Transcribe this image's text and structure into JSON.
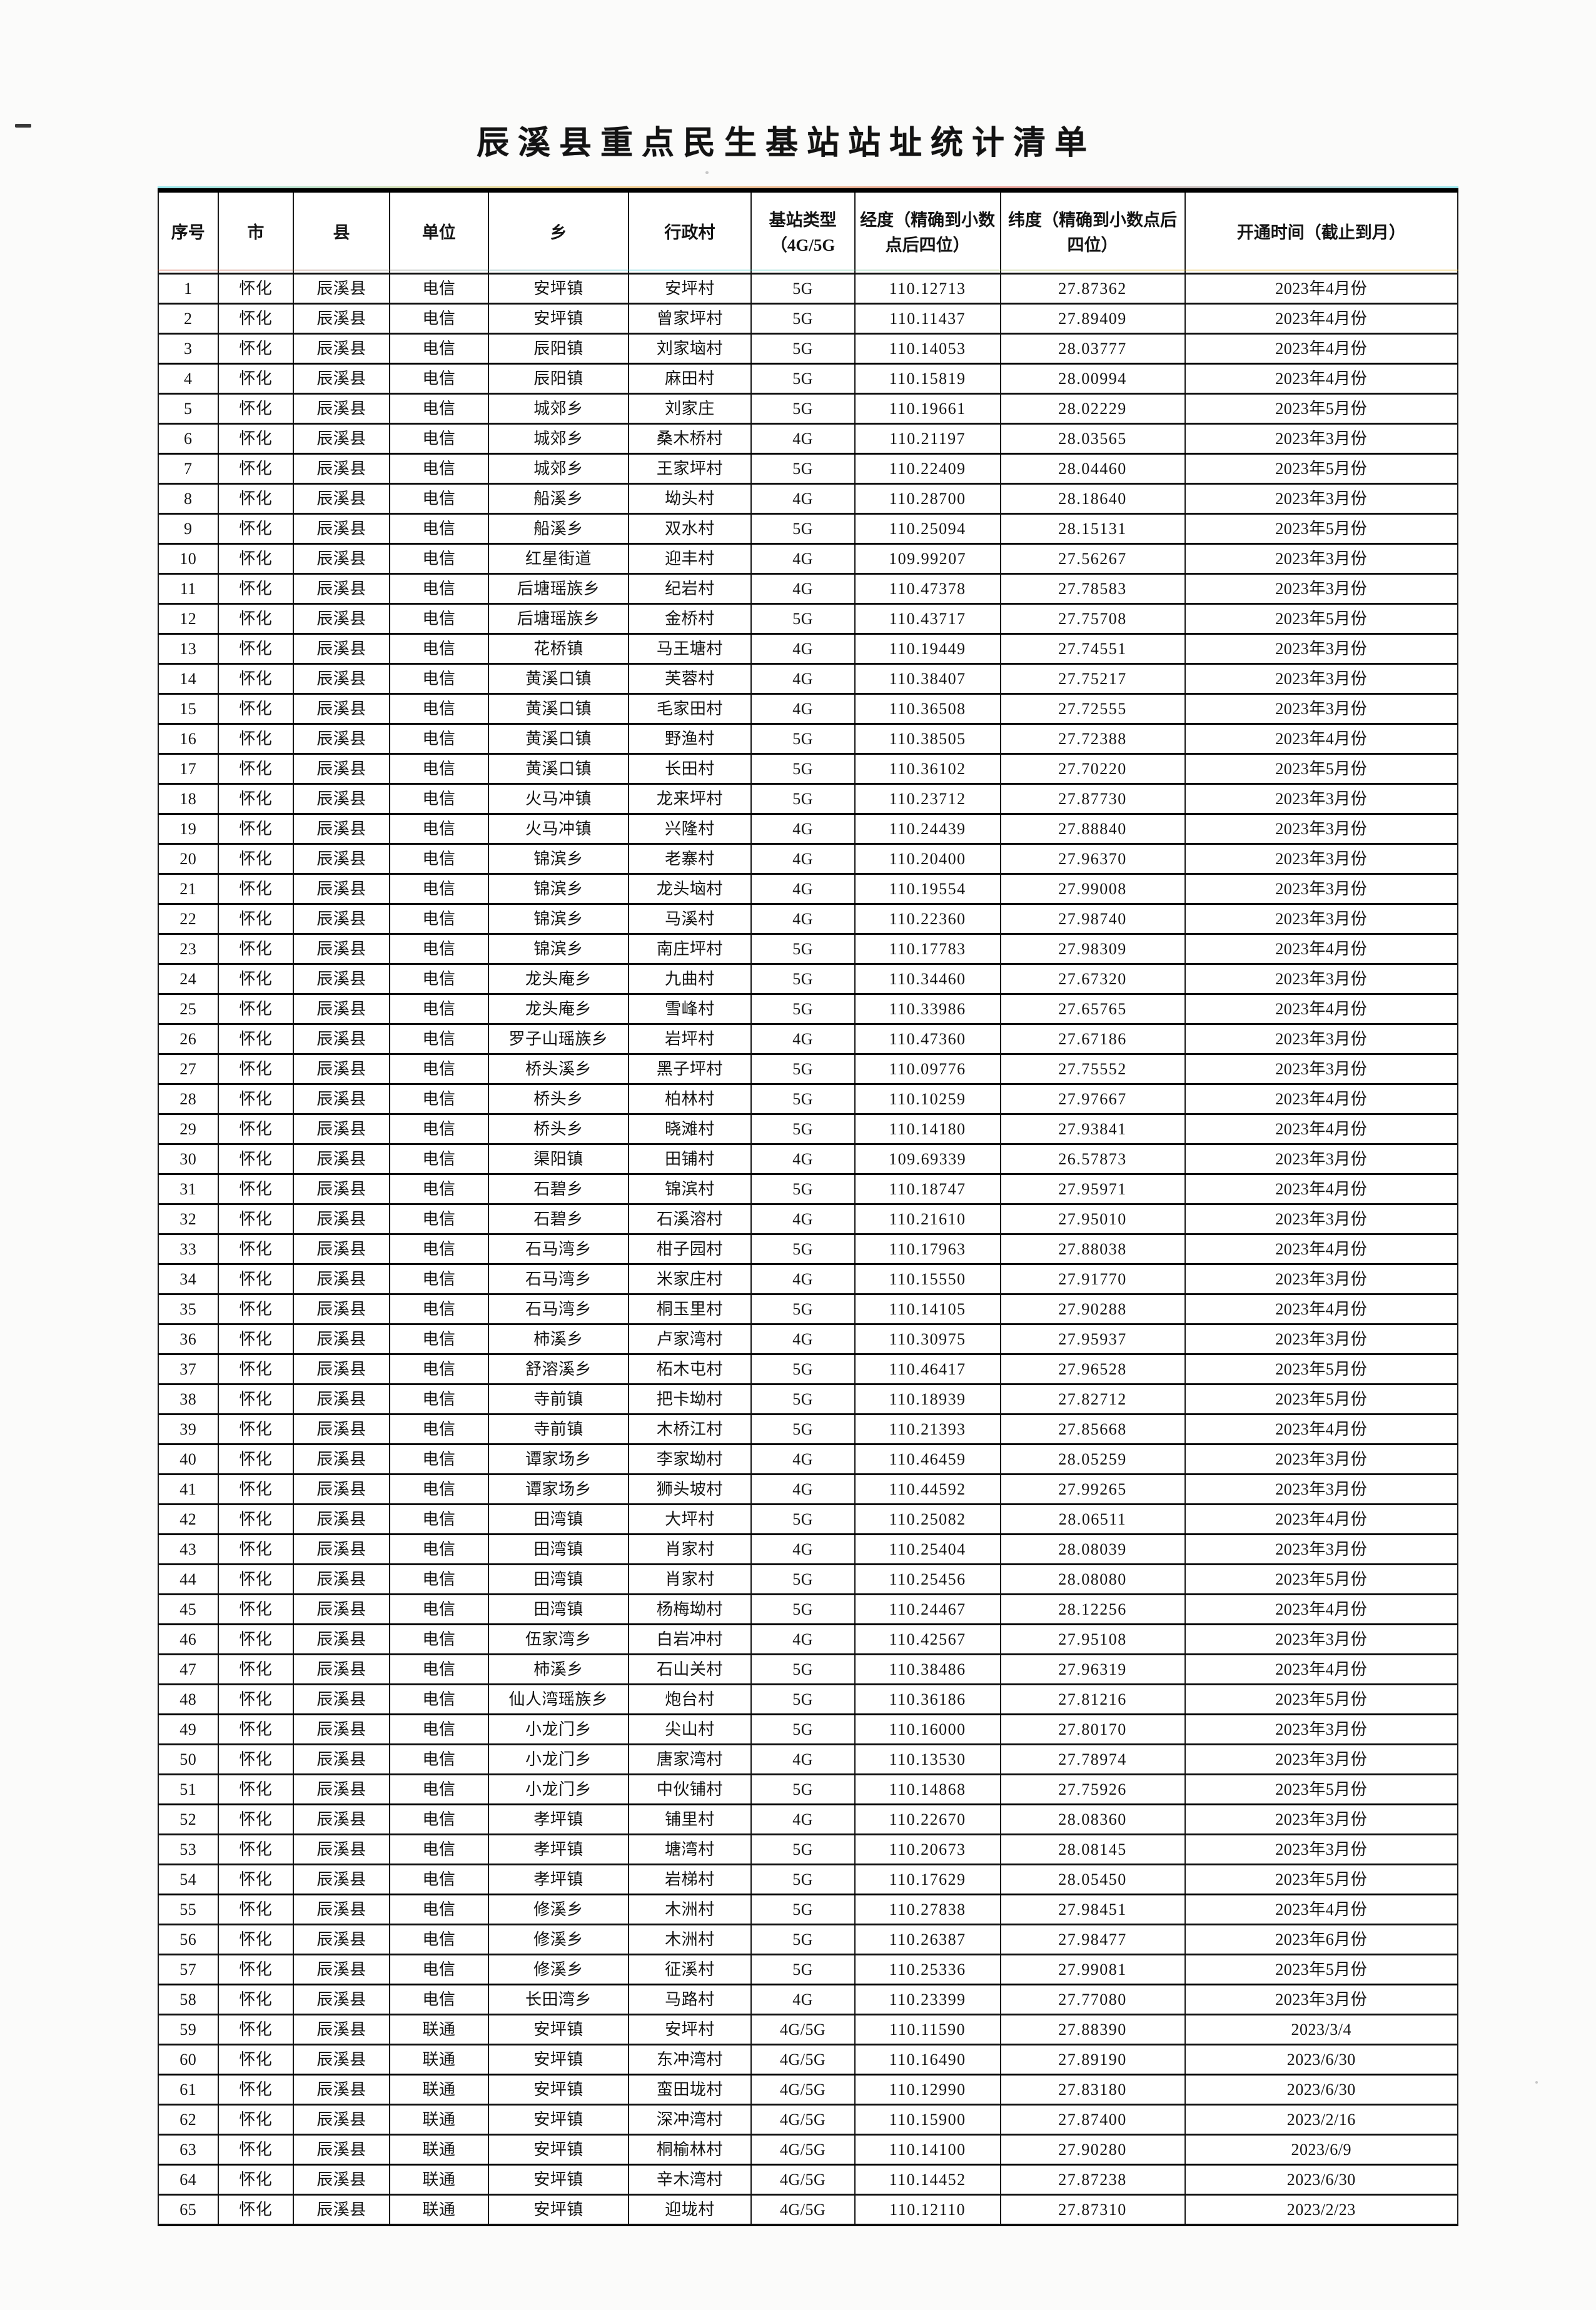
{
  "title": "辰溪县重点民生基站站址统计清单",
  "table": {
    "columns": [
      "序号",
      "市",
      "县",
      "单位",
      "乡",
      "行政村",
      "基站类型（4G/5G",
      "经度（精确到小数点后四位）",
      "纬度（精确到小数点后四位）",
      "开通时间（截止到月）"
    ],
    "rows": [
      [
        "1",
        "怀化",
        "辰溪县",
        "电信",
        "安坪镇",
        "安坪村",
        "5G",
        "110.12713",
        "27.87362",
        "2023年4月份"
      ],
      [
        "2",
        "怀化",
        "辰溪县",
        "电信",
        "安坪镇",
        "曾家坪村",
        "5G",
        "110.11437",
        "27.89409",
        "2023年4月份"
      ],
      [
        "3",
        "怀化",
        "辰溪县",
        "电信",
        "辰阳镇",
        "刘家垴村",
        "5G",
        "110.14053",
        "28.03777",
        "2023年4月份"
      ],
      [
        "4",
        "怀化",
        "辰溪县",
        "电信",
        "辰阳镇",
        "麻田村",
        "5G",
        "110.15819",
        "28.00994",
        "2023年4月份"
      ],
      [
        "5",
        "怀化",
        "辰溪县",
        "电信",
        "城郊乡",
        "刘家庄",
        "5G",
        "110.19661",
        "28.02229",
        "2023年5月份"
      ],
      [
        "6",
        "怀化",
        "辰溪县",
        "电信",
        "城郊乡",
        "桑木桥村",
        "4G",
        "110.21197",
        "28.03565",
        "2023年3月份"
      ],
      [
        "7",
        "怀化",
        "辰溪县",
        "电信",
        "城郊乡",
        "王家坪村",
        "5G",
        "110.22409",
        "28.04460",
        "2023年5月份"
      ],
      [
        "8",
        "怀化",
        "辰溪县",
        "电信",
        "船溪乡",
        "坳头村",
        "4G",
        "110.28700",
        "28.18640",
        "2023年3月份"
      ],
      [
        "9",
        "怀化",
        "辰溪县",
        "电信",
        "船溪乡",
        "双水村",
        "5G",
        "110.25094",
        "28.15131",
        "2023年5月份"
      ],
      [
        "10",
        "怀化",
        "辰溪县",
        "电信",
        "红星街道",
        "迎丰村",
        "4G",
        "109.99207",
        "27.56267",
        "2023年3月份"
      ],
      [
        "11",
        "怀化",
        "辰溪县",
        "电信",
        "后塘瑶族乡",
        "纪岩村",
        "4G",
        "110.47378",
        "27.78583",
        "2023年3月份"
      ],
      [
        "12",
        "怀化",
        "辰溪县",
        "电信",
        "后塘瑶族乡",
        "金桥村",
        "5G",
        "110.43717",
        "27.75708",
        "2023年5月份"
      ],
      [
        "13",
        "怀化",
        "辰溪县",
        "电信",
        "花桥镇",
        "马王塘村",
        "4G",
        "110.19449",
        "27.74551",
        "2023年3月份"
      ],
      [
        "14",
        "怀化",
        "辰溪县",
        "电信",
        "黄溪口镇",
        "芙蓉村",
        "4G",
        "110.38407",
        "27.75217",
        "2023年3月份"
      ],
      [
        "15",
        "怀化",
        "辰溪县",
        "电信",
        "黄溪口镇",
        "毛家田村",
        "4G",
        "110.36508",
        "27.72555",
        "2023年3月份"
      ],
      [
        "16",
        "怀化",
        "辰溪县",
        "电信",
        "黄溪口镇",
        "野渔村",
        "5G",
        "110.38505",
        "27.72388",
        "2023年4月份"
      ],
      [
        "17",
        "怀化",
        "辰溪县",
        "电信",
        "黄溪口镇",
        "长田村",
        "5G",
        "110.36102",
        "27.70220",
        "2023年5月份"
      ],
      [
        "18",
        "怀化",
        "辰溪县",
        "电信",
        "火马冲镇",
        "龙来坪村",
        "5G",
        "110.23712",
        "27.87730",
        "2023年3月份"
      ],
      [
        "19",
        "怀化",
        "辰溪县",
        "电信",
        "火马冲镇",
        "兴隆村",
        "4G",
        "110.24439",
        "27.88840",
        "2023年3月份"
      ],
      [
        "20",
        "怀化",
        "辰溪县",
        "电信",
        "锦滨乡",
        "老寨村",
        "4G",
        "110.20400",
        "27.96370",
        "2023年3月份"
      ],
      [
        "21",
        "怀化",
        "辰溪县",
        "电信",
        "锦滨乡",
        "龙头垴村",
        "4G",
        "110.19554",
        "27.99008",
        "2023年3月份"
      ],
      [
        "22",
        "怀化",
        "辰溪县",
        "电信",
        "锦滨乡",
        "马溪村",
        "4G",
        "110.22360",
        "27.98740",
        "2023年3月份"
      ],
      [
        "23",
        "怀化",
        "辰溪县",
        "电信",
        "锦滨乡",
        "南庄坪村",
        "5G",
        "110.17783",
        "27.98309",
        "2023年4月份"
      ],
      [
        "24",
        "怀化",
        "辰溪县",
        "电信",
        "龙头庵乡",
        "九曲村",
        "5G",
        "110.34460",
        "27.67320",
        "2023年3月份"
      ],
      [
        "25",
        "怀化",
        "辰溪县",
        "电信",
        "龙头庵乡",
        "雪峰村",
        "5G",
        "110.33986",
        "27.65765",
        "2023年4月份"
      ],
      [
        "26",
        "怀化",
        "辰溪县",
        "电信",
        "罗子山瑶族乡",
        "岩坪村",
        "4G",
        "110.47360",
        "27.67186",
        "2023年3月份"
      ],
      [
        "27",
        "怀化",
        "辰溪县",
        "电信",
        "桥头溪乡",
        "黑子坪村",
        "5G",
        "110.09776",
        "27.75552",
        "2023年3月份"
      ],
      [
        "28",
        "怀化",
        "辰溪县",
        "电信",
        "桥头乡",
        "柏林村",
        "5G",
        "110.10259",
        "27.97667",
        "2023年4月份"
      ],
      [
        "29",
        "怀化",
        "辰溪县",
        "电信",
        "桥头乡",
        "晓滩村",
        "5G",
        "110.14180",
        "27.93841",
        "2023年4月份"
      ],
      [
        "30",
        "怀化",
        "辰溪县",
        "电信",
        "渠阳镇",
        "田铺村",
        "4G",
        "109.69339",
        "26.57873",
        "2023年3月份"
      ],
      [
        "31",
        "怀化",
        "辰溪县",
        "电信",
        "石碧乡",
        "锦滨村",
        "5G",
        "110.18747",
        "27.95971",
        "2023年4月份"
      ],
      [
        "32",
        "怀化",
        "辰溪县",
        "电信",
        "石碧乡",
        "石溪溶村",
        "4G",
        "110.21610",
        "27.95010",
        "2023年3月份"
      ],
      [
        "33",
        "怀化",
        "辰溪县",
        "电信",
        "石马湾乡",
        "柑子园村",
        "5G",
        "110.17963",
        "27.88038",
        "2023年4月份"
      ],
      [
        "34",
        "怀化",
        "辰溪县",
        "电信",
        "石马湾乡",
        "米家庄村",
        "4G",
        "110.15550",
        "27.91770",
        "2023年3月份"
      ],
      [
        "35",
        "怀化",
        "辰溪县",
        "电信",
        "石马湾乡",
        "桐玉里村",
        "5G",
        "110.14105",
        "27.90288",
        "2023年4月份"
      ],
      [
        "36",
        "怀化",
        "辰溪县",
        "电信",
        "柿溪乡",
        "卢家湾村",
        "4G",
        "110.30975",
        "27.95937",
        "2023年3月份"
      ],
      [
        "37",
        "怀化",
        "辰溪县",
        "电信",
        "舒溶溪乡",
        "柘木屯村",
        "5G",
        "110.46417",
        "27.96528",
        "2023年5月份"
      ],
      [
        "38",
        "怀化",
        "辰溪县",
        "电信",
        "寺前镇",
        "把卡坳村",
        "5G",
        "110.18939",
        "27.82712",
        "2023年5月份"
      ],
      [
        "39",
        "怀化",
        "辰溪县",
        "电信",
        "寺前镇",
        "木桥江村",
        "5G",
        "110.21393",
        "27.85668",
        "2023年4月份"
      ],
      [
        "40",
        "怀化",
        "辰溪县",
        "电信",
        "谭家场乡",
        "李家坳村",
        "4G",
        "110.46459",
        "28.05259",
        "2023年3月份"
      ],
      [
        "41",
        "怀化",
        "辰溪县",
        "电信",
        "谭家场乡",
        "狮头坡村",
        "4G",
        "110.44592",
        "27.99265",
        "2023年3月份"
      ],
      [
        "42",
        "怀化",
        "辰溪县",
        "电信",
        "田湾镇",
        "大坪村",
        "5G",
        "110.25082",
        "28.06511",
        "2023年4月份"
      ],
      [
        "43",
        "怀化",
        "辰溪县",
        "电信",
        "田湾镇",
        "肖家村",
        "4G",
        "110.25404",
        "28.08039",
        "2023年3月份"
      ],
      [
        "44",
        "怀化",
        "辰溪县",
        "电信",
        "田湾镇",
        "肖家村",
        "5G",
        "110.25456",
        "28.08080",
        "2023年5月份"
      ],
      [
        "45",
        "怀化",
        "辰溪县",
        "电信",
        "田湾镇",
        "杨梅坳村",
        "5G",
        "110.24467",
        "28.12256",
        "2023年4月份"
      ],
      [
        "46",
        "怀化",
        "辰溪县",
        "电信",
        "伍家湾乡",
        "白岩冲村",
        "4G",
        "110.42567",
        "27.95108",
        "2023年3月份"
      ],
      [
        "47",
        "怀化",
        "辰溪县",
        "电信",
        "柿溪乡",
        "石山关村",
        "5G",
        "110.38486",
        "27.96319",
        "2023年4月份"
      ],
      [
        "48",
        "怀化",
        "辰溪县",
        "电信",
        "仙人湾瑶族乡",
        "炮台村",
        "5G",
        "110.36186",
        "27.81216",
        "2023年5月份"
      ],
      [
        "49",
        "怀化",
        "辰溪县",
        "电信",
        "小龙门乡",
        "尖山村",
        "5G",
        "110.16000",
        "27.80170",
        "2023年3月份"
      ],
      [
        "50",
        "怀化",
        "辰溪县",
        "电信",
        "小龙门乡",
        "唐家湾村",
        "4G",
        "110.13530",
        "27.78974",
        "2023年3月份"
      ],
      [
        "51",
        "怀化",
        "辰溪县",
        "电信",
        "小龙门乡",
        "中伙铺村",
        "5G",
        "110.14868",
        "27.75926",
        "2023年5月份"
      ],
      [
        "52",
        "怀化",
        "辰溪县",
        "电信",
        "孝坪镇",
        "铺里村",
        "4G",
        "110.22670",
        "28.08360",
        "2023年3月份"
      ],
      [
        "53",
        "怀化",
        "辰溪县",
        "电信",
        "孝坪镇",
        "塘湾村",
        "5G",
        "110.20673",
        "28.08145",
        "2023年3月份"
      ],
      [
        "54",
        "怀化",
        "辰溪县",
        "电信",
        "孝坪镇",
        "岩梯村",
        "5G",
        "110.17629",
        "28.05450",
        "2023年5月份"
      ],
      [
        "55",
        "怀化",
        "辰溪县",
        "电信",
        "修溪乡",
        "木洲村",
        "5G",
        "110.27838",
        "27.98451",
        "2023年4月份"
      ],
      [
        "56",
        "怀化",
        "辰溪县",
        "电信",
        "修溪乡",
        "木洲村",
        "5G",
        "110.26387",
        "27.98477",
        "2023年6月份"
      ],
      [
        "57",
        "怀化",
        "辰溪县",
        "电信",
        "修溪乡",
        "征溪村",
        "5G",
        "110.25336",
        "27.99081",
        "2023年5月份"
      ],
      [
        "58",
        "怀化",
        "辰溪县",
        "电信",
        "长田湾乡",
        "马路村",
        "4G",
        "110.23399",
        "27.77080",
        "2023年3月份"
      ],
      [
        "59",
        "怀化",
        "辰溪县",
        "联通",
        "安坪镇",
        "安坪村",
        "4G/5G",
        "110.11590",
        "27.88390",
        "2023/3/4"
      ],
      [
        "60",
        "怀化",
        "辰溪县",
        "联通",
        "安坪镇",
        "东冲湾村",
        "4G/5G",
        "110.16490",
        "27.89190",
        "2023/6/30"
      ],
      [
        "61",
        "怀化",
        "辰溪县",
        "联通",
        "安坪镇",
        "蛮田垅村",
        "4G/5G",
        "110.12990",
        "27.83180",
        "2023/6/30"
      ],
      [
        "62",
        "怀化",
        "辰溪县",
        "联通",
        "安坪镇",
        "深冲湾村",
        "4G/5G",
        "110.15900",
        "27.87400",
        "2023/2/16"
      ],
      [
        "63",
        "怀化",
        "辰溪县",
        "联通",
        "安坪镇",
        "桐榆林村",
        "4G/5G",
        "110.14100",
        "27.90280",
        "2023/6/9"
      ],
      [
        "64",
        "怀化",
        "辰溪县",
        "联通",
        "安坪镇",
        "辛木湾村",
        "4G/5G",
        "110.14452",
        "27.87238",
        "2023/6/30"
      ],
      [
        "65",
        "怀化",
        "辰溪县",
        "联通",
        "安坪镇",
        "迎垅村",
        "4G/5G",
        "110.12110",
        "27.87310",
        "2023/2/23"
      ]
    ]
  }
}
